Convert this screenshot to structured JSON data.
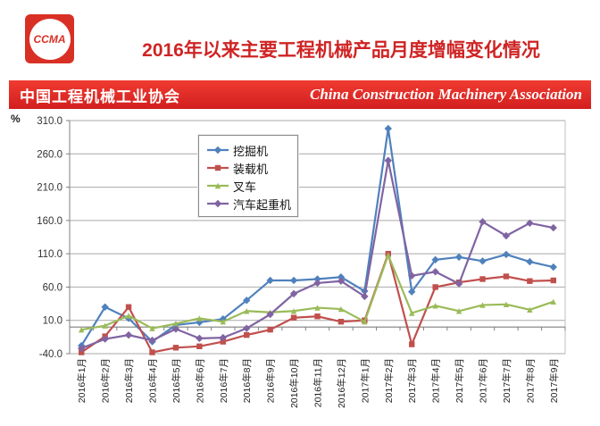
{
  "header": {
    "logo_text": "CCMA",
    "title": "2016年以来主要工程机械产品月度增幅变化情况",
    "banner_cn": "中国工程机械工业协会",
    "banner_en": "China Construction Machinery Association"
  },
  "axis": {
    "unit_label": "%"
  },
  "chart_data": {
    "type": "line",
    "title": "2016年以来主要工程机械产品月度增幅变化情况",
    "xlabel": "",
    "ylabel": "%",
    "ylim": [
      -40,
      310
    ],
    "yticks": [
      310.0,
      260.0,
      210.0,
      160.0,
      110.0,
      60.0,
      10.0,
      -40.0
    ],
    "grid": true,
    "legend_position": "upper-left-inside",
    "categories": [
      "2016年1月",
      "2016年2月",
      "2016年3月",
      "2016年4月",
      "2016年5月",
      "2016年6月",
      "2016年7月",
      "2016年8月",
      "2016年9月",
      "2016年10月",
      "2016年11月",
      "2016年12月",
      "2017年1月",
      "2017年2月",
      "2017年3月",
      "2017年4月",
      "2017年5月",
      "2017年6月",
      "2017年7月",
      "2017年8月",
      "2017年9月"
    ],
    "series": [
      {
        "name": "挖掘机",
        "color": "#4f81bd",
        "marker": "diamond",
        "values": [
          -28,
          30,
          13,
          -22,
          3,
          7,
          12,
          40,
          70,
          70,
          72,
          75,
          54,
          298,
          53,
          101,
          105,
          99,
          109,
          98,
          90
        ]
      },
      {
        "name": "装载机",
        "color": "#c0504d",
        "marker": "square",
        "values": [
          -38,
          -14,
          30,
          -38,
          -31,
          -29,
          -22,
          -12,
          -4,
          14,
          16,
          8,
          10,
          110,
          -26,
          60,
          67,
          72,
          76,
          69,
          70
        ]
      },
      {
        "name": "叉车",
        "color": "#9bbb59",
        "marker": "triangle",
        "values": [
          -4,
          2,
          17,
          -2,
          5,
          13,
          8,
          24,
          22,
          24,
          29,
          27,
          8,
          108,
          21,
          32,
          24,
          33,
          34,
          26,
          38
        ]
      },
      {
        "name": "汽车起重机",
        "color": "#8064a2",
        "marker": "diamond",
        "values": [
          -32,
          -18,
          -12,
          -20,
          -3,
          -17,
          -16,
          -2,
          19,
          50,
          66,
          69,
          46,
          250,
          77,
          83,
          65,
          158,
          137,
          156,
          149
        ]
      }
    ]
  }
}
